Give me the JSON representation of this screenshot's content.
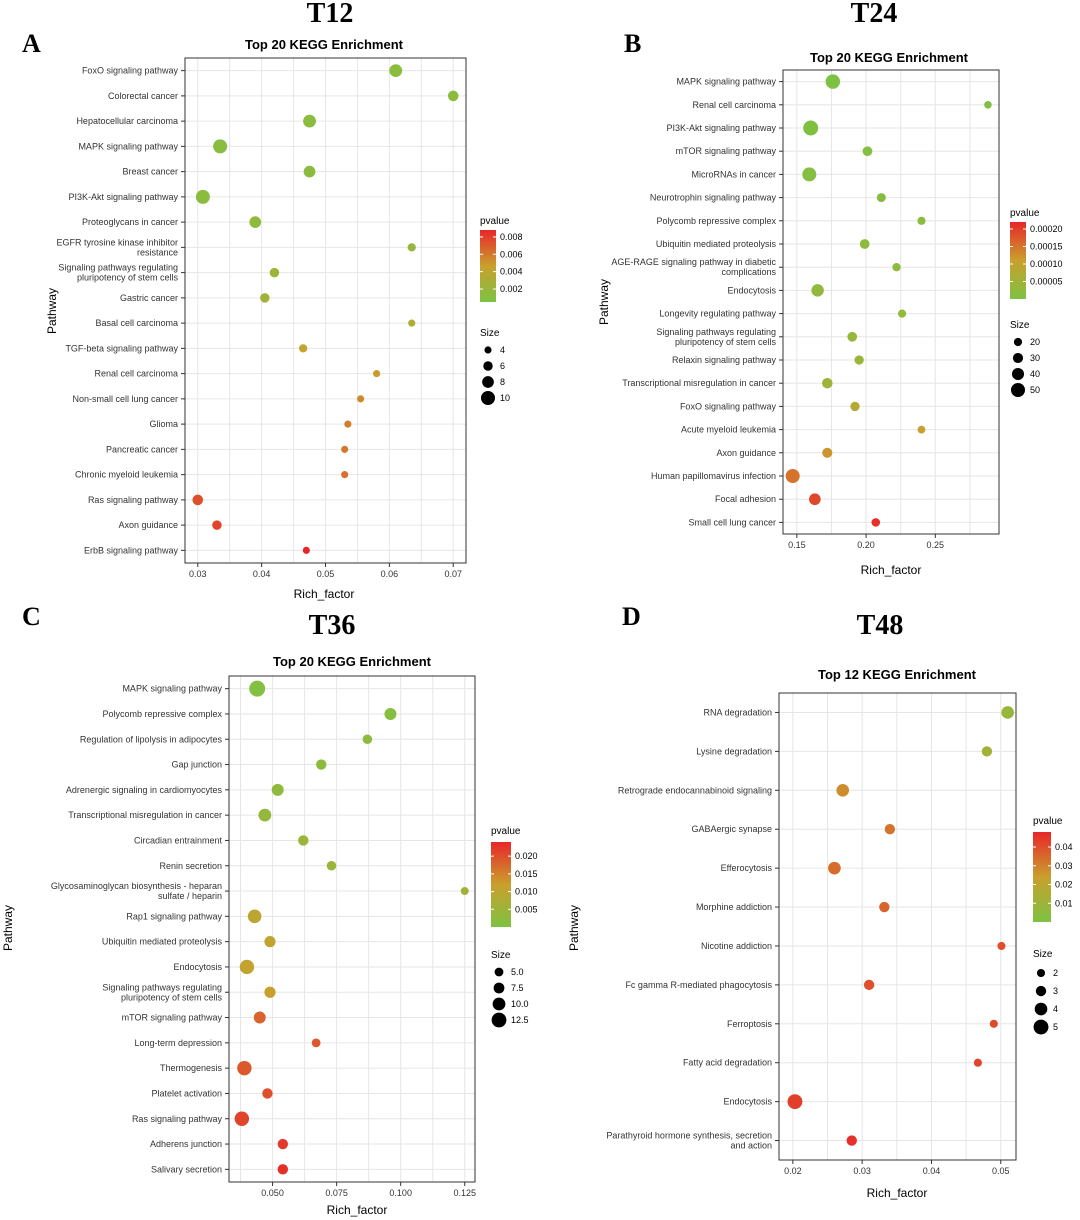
{
  "figure": {
    "panels": [
      {
        "letter": "A",
        "group": "T12"
      },
      {
        "letter": "B",
        "group": "T24"
      },
      {
        "letter": "C",
        "group": "T36"
      },
      {
        "letter": "D",
        "group": "T48"
      }
    ],
    "colorbar": {
      "low": "#7dc242",
      "mid": "#c9a02d",
      "high": "#e8262a"
    }
  },
  "chart_data": [
    {
      "type": "scatter",
      "title": "Top 20 KEGG Enrichment",
      "xlabel": "Rich_factor",
      "ylabel": "Pathway",
      "xlim": [
        0.028,
        0.072
      ],
      "xticks": [
        0.03,
        0.04,
        0.05,
        0.06,
        0.07
      ],
      "xtick_labels": [
        "0.03",
        "0.04",
        "0.05",
        "0.06",
        "0.07"
      ],
      "pvalue_range": [
        0.0005,
        0.0088
      ],
      "pvalue_ticks": [
        0.002,
        0.004,
        0.006,
        0.008
      ],
      "pvalue_tick_labels": [
        "0.002",
        "0.004",
        "0.006",
        "0.008"
      ],
      "size_range": [
        3,
        10
      ],
      "size_ticks": [
        4,
        6,
        8,
        10
      ],
      "size_tick_labels": [
        "4",
        "6",
        "8",
        "10"
      ],
      "legend_pvalue_title": "pvalue",
      "legend_size_title": "Size",
      "points": [
        {
          "pathway": [
            "FoxO signaling pathway"
          ],
          "rich_factor": 0.061,
          "pvalue": 0.0012,
          "size": 9
        },
        {
          "pathway": [
            "Colorectal cancer"
          ],
          "rich_factor": 0.07,
          "pvalue": 0.0014,
          "size": 7
        },
        {
          "pathway": [
            "Hepatocellular carcinoma"
          ],
          "rich_factor": 0.0475,
          "pvalue": 0.0012,
          "size": 9
        },
        {
          "pathway": [
            "MAPK signaling pathway"
          ],
          "rich_factor": 0.0335,
          "pvalue": 0.0011,
          "size": 10
        },
        {
          "pathway": [
            "Breast cancer"
          ],
          "rich_factor": 0.0475,
          "pvalue": 0.0013,
          "size": 8
        },
        {
          "pathway": [
            "PI3K-Akt signaling pathway"
          ],
          "rich_factor": 0.0308,
          "pvalue": 0.0012,
          "size": 10
        },
        {
          "pathway": [
            "Proteoglycans in cancer"
          ],
          "rich_factor": 0.039,
          "pvalue": 0.0015,
          "size": 8
        },
        {
          "pathway": [
            "EGFR tyrosine kinase inhibitor",
            "resistance"
          ],
          "rich_factor": 0.0635,
          "pvalue": 0.0018,
          "size": 5
        },
        {
          "pathway": [
            "Signaling pathways regulating",
            "pluripotency of stem cells"
          ],
          "rich_factor": 0.042,
          "pvalue": 0.0022,
          "size": 6
        },
        {
          "pathway": [
            "Gastric cancer"
          ],
          "rich_factor": 0.0405,
          "pvalue": 0.0025,
          "size": 6
        },
        {
          "pathway": [
            "Basal cell carcinoma"
          ],
          "rich_factor": 0.0635,
          "pvalue": 0.0032,
          "size": 4
        },
        {
          "pathway": [
            "TGF-beta signaling pathway"
          ],
          "rich_factor": 0.0465,
          "pvalue": 0.0042,
          "size": 5
        },
        {
          "pathway": [
            "Renal cell carcinoma"
          ],
          "rich_factor": 0.058,
          "pvalue": 0.0049,
          "size": 4
        },
        {
          "pathway": [
            "Non-small cell lung cancer"
          ],
          "rich_factor": 0.0555,
          "pvalue": 0.0054,
          "size": 4
        },
        {
          "pathway": [
            "Glioma"
          ],
          "rich_factor": 0.0535,
          "pvalue": 0.0058,
          "size": 4
        },
        {
          "pathway": [
            "Pancreatic cancer"
          ],
          "rich_factor": 0.053,
          "pvalue": 0.006,
          "size": 4
        },
        {
          "pathway": [
            "Chronic myeloid leukemia"
          ],
          "rich_factor": 0.053,
          "pvalue": 0.0062,
          "size": 4
        },
        {
          "pathway": [
            "Ras signaling pathway"
          ],
          "rich_factor": 0.03,
          "pvalue": 0.0074,
          "size": 7
        },
        {
          "pathway": [
            "Axon guidance"
          ],
          "rich_factor": 0.033,
          "pvalue": 0.0078,
          "size": 6
        },
        {
          "pathway": [
            "ErbB signaling pathway"
          ],
          "rich_factor": 0.047,
          "pvalue": 0.0088,
          "size": 4
        }
      ]
    },
    {
      "type": "scatter",
      "title": "Top 20 KEGG Enrichment",
      "xlabel": "Rich_factor",
      "ylabel": "Pathway",
      "xlim": [
        0.14,
        0.296
      ],
      "xticks": [
        0.15,
        0.2,
        0.25
      ],
      "xtick_labels": [
        "0.15",
        "0.20",
        "0.25"
      ],
      "pvalue_range": [
        0.0,
        0.00022
      ],
      "pvalue_ticks": [
        5e-05,
        0.0001,
        0.00015,
        0.0002
      ],
      "pvalue_tick_labels": [
        "0.00005",
        "0.00010",
        "0.00015",
        "0.00020"
      ],
      "size_range": [
        14,
        55
      ],
      "size_ticks": [
        20,
        30,
        40,
        50
      ],
      "size_tick_labels": [
        "20",
        "30",
        "40",
        "50"
      ],
      "legend_pvalue_title": "pvalue",
      "legend_size_title": "Size",
      "points": [
        {
          "pathway": [
            "MAPK signaling pathway"
          ],
          "rich_factor": 0.176,
          "pvalue": 0.0,
          "size": 52
        },
        {
          "pathway": [
            "Renal cell carcinoma"
          ],
          "rich_factor": 0.288,
          "pvalue": 5e-06,
          "size": 17
        },
        {
          "pathway": [
            "PI3K-Akt signaling pathway"
          ],
          "rich_factor": 0.16,
          "pvalue": 5e-06,
          "size": 55
        },
        {
          "pathway": [
            "mTOR signaling pathway"
          ],
          "rich_factor": 0.201,
          "pvalue": 1e-05,
          "size": 28
        },
        {
          "pathway": [
            "MicroRNAs in cancer"
          ],
          "rich_factor": 0.159,
          "pvalue": 1.2e-05,
          "size": 50
        },
        {
          "pathway": [
            "Neurotrophin signaling pathway"
          ],
          "rich_factor": 0.211,
          "pvalue": 1.5e-05,
          "size": 24
        },
        {
          "pathway": [
            "Polycomb repressive complex"
          ],
          "rich_factor": 0.24,
          "pvalue": 1.8e-05,
          "size": 20
        },
        {
          "pathway": [
            "Ubiquitin mediated proteolysis"
          ],
          "rich_factor": 0.199,
          "pvalue": 2e-05,
          "size": 28
        },
        {
          "pathway": [
            "AGE-RAGE signaling pathway in diabetic",
            "complications"
          ],
          "rich_factor": 0.222,
          "pvalue": 2.5e-05,
          "size": 21
        },
        {
          "pathway": [
            "Endocytosis"
          ],
          "rich_factor": 0.165,
          "pvalue": 2.8e-05,
          "size": 42
        },
        {
          "pathway": [
            "Longevity regulating pathway"
          ],
          "rich_factor": 0.226,
          "pvalue": 3e-05,
          "size": 20
        },
        {
          "pathway": [
            "Signaling pathways regulating",
            "pluripotency of stem cells"
          ],
          "rich_factor": 0.19,
          "pvalue": 3.5e-05,
          "size": 28
        },
        {
          "pathway": [
            "Relaxin signaling pathway"
          ],
          "rich_factor": 0.195,
          "pvalue": 4e-05,
          "size": 26
        },
        {
          "pathway": [
            "Transcriptional misregulation in cancer"
          ],
          "rich_factor": 0.172,
          "pvalue": 5e-05,
          "size": 32
        },
        {
          "pathway": [
            "FoxO signaling pathway"
          ],
          "rich_factor": 0.192,
          "pvalue": 8e-05,
          "size": 26
        },
        {
          "pathway": [
            "Acute myeloid leukemia"
          ],
          "rich_factor": 0.24,
          "pvalue": 0.00011,
          "size": 18
        },
        {
          "pathway": [
            "Axon guidance"
          ],
          "rich_factor": 0.172,
          "pvalue": 0.00012,
          "size": 30
        },
        {
          "pathway": [
            "Human papillomavirus infection"
          ],
          "rich_factor": 0.147,
          "pvalue": 0.00015,
          "size": 50
        },
        {
          "pathway": [
            "Focal adhesion"
          ],
          "rich_factor": 0.163,
          "pvalue": 0.00019,
          "size": 38
        },
        {
          "pathway": [
            "Small cell lung cancer"
          ],
          "rich_factor": 0.207,
          "pvalue": 0.00021,
          "size": 22
        }
      ]
    },
    {
      "type": "scatter",
      "title": "Top 20 KEGG Enrichment",
      "xlabel": "Rich_factor",
      "ylabel": "Pathway",
      "xlim": [
        0.033,
        0.129
      ],
      "xticks": [
        0.05,
        0.075,
        0.1,
        0.125
      ],
      "xtick_labels": [
        "0.050",
        "0.075",
        "0.100",
        "0.125"
      ],
      "pvalue_range": [
        0.0,
        0.024
      ],
      "pvalue_ticks": [
        0.005,
        0.01,
        0.015,
        0.02
      ],
      "pvalue_tick_labels": [
        "0.005",
        "0.010",
        "0.015",
        "0.020"
      ],
      "size_range": [
        4,
        14
      ],
      "size_ticks": [
        5.0,
        7.5,
        10.0,
        12.5
      ],
      "size_tick_labels": [
        "5.0",
        "7.5",
        "10.0",
        "12.5"
      ],
      "legend_pvalue_title": "pvalue",
      "legend_size_title": "Size",
      "points": [
        {
          "pathway": [
            "MAPK signaling pathway"
          ],
          "rich_factor": 0.044,
          "pvalue": 0.001,
          "size": 14
        },
        {
          "pathway": [
            "Polycomb repressive complex"
          ],
          "rich_factor": 0.096,
          "pvalue": 0.0015,
          "size": 9
        },
        {
          "pathway": [
            "Regulation of lipolysis in adipocytes"
          ],
          "rich_factor": 0.087,
          "pvalue": 0.002,
          "size": 6
        },
        {
          "pathway": [
            "Gap junction"
          ],
          "rich_factor": 0.069,
          "pvalue": 0.0025,
          "size": 7
        },
        {
          "pathway": [
            "Adrenergic signaling in cardiomyocytes"
          ],
          "rich_factor": 0.052,
          "pvalue": 0.003,
          "size": 9
        },
        {
          "pathway": [
            "Transcriptional misregulation in cancer"
          ],
          "rich_factor": 0.047,
          "pvalue": 0.0035,
          "size": 10
        },
        {
          "pathway": [
            "Circadian entrainment"
          ],
          "rich_factor": 0.062,
          "pvalue": 0.0045,
          "size": 7
        },
        {
          "pathway": [
            "Renin secretion"
          ],
          "rich_factor": 0.073,
          "pvalue": 0.0045,
          "size": 6
        },
        {
          "pathway": [
            "Glycosaminoglycan biosynthesis - heparan",
            "sulfate / heparin"
          ],
          "rich_factor": 0.125,
          "pvalue": 0.006,
          "size": 4
        },
        {
          "pathway": [
            "Rap1 signaling pathway"
          ],
          "rich_factor": 0.043,
          "pvalue": 0.01,
          "size": 11
        },
        {
          "pathway": [
            "Ubiquitin mediated proteolysis"
          ],
          "rich_factor": 0.049,
          "pvalue": 0.0105,
          "size": 8
        },
        {
          "pathway": [
            "Endocytosis"
          ],
          "rich_factor": 0.04,
          "pvalue": 0.011,
          "size": 12
        },
        {
          "pathway": [
            "Signaling pathways regulating",
            "pluripotency of stem cells"
          ],
          "rich_factor": 0.049,
          "pvalue": 0.012,
          "size": 8
        },
        {
          "pathway": [
            "mTOR signaling pathway"
          ],
          "rich_factor": 0.045,
          "pvalue": 0.018,
          "size": 9
        },
        {
          "pathway": [
            "Long-term depression"
          ],
          "rich_factor": 0.067,
          "pvalue": 0.019,
          "size": 5
        },
        {
          "pathway": [
            "Thermogenesis"
          ],
          "rich_factor": 0.039,
          "pvalue": 0.019,
          "size": 12
        },
        {
          "pathway": [
            "Platelet activation"
          ],
          "rich_factor": 0.048,
          "pvalue": 0.02,
          "size": 7
        },
        {
          "pathway": [
            "Ras signaling pathway"
          ],
          "rich_factor": 0.038,
          "pvalue": 0.021,
          "size": 12
        },
        {
          "pathway": [
            "Adherens junction"
          ],
          "rich_factor": 0.054,
          "pvalue": 0.022,
          "size": 7
        },
        {
          "pathway": [
            "Salivary secretion"
          ],
          "rich_factor": 0.054,
          "pvalue": 0.023,
          "size": 7
        }
      ]
    },
    {
      "type": "scatter",
      "title": "Top 12 KEGG Enrichment",
      "xlabel": "Rich_factor",
      "ylabel": "Pathway",
      "xlim": [
        0.018,
        0.0522
      ],
      "xticks": [
        0.02,
        0.03,
        0.04,
        0.05
      ],
      "xtick_labels": [
        "0.02",
        "0.03",
        "0.04",
        "0.05"
      ],
      "pvalue_range": [
        0.0,
        0.048
      ],
      "pvalue_ticks": [
        0.01,
        0.02,
        0.03,
        0.04
      ],
      "pvalue_tick_labels": [
        "0.01",
        "0.02",
        "0.03",
        "0.04"
      ],
      "size_range": [
        1.5,
        5.5
      ],
      "size_ticks": [
        2,
        3,
        4,
        5
      ],
      "size_tick_labels": [
        "2",
        "3",
        "4",
        "5"
      ],
      "legend_pvalue_title": "pvalue",
      "legend_size_title": "Size",
      "points": [
        {
          "pathway": [
            "RNA degradation"
          ],
          "rich_factor": 0.051,
          "pvalue": 0.008,
          "size": 4
        },
        {
          "pathway": [
            "Lysine degradation"
          ],
          "rich_factor": 0.048,
          "pvalue": 0.012,
          "size": 3
        },
        {
          "pathway": [
            "Retrograde endocannabinoid signaling"
          ],
          "rich_factor": 0.0272,
          "pvalue": 0.028,
          "size": 4
        },
        {
          "pathway": [
            "GABAergic synapse"
          ],
          "rich_factor": 0.034,
          "pvalue": 0.033,
          "size": 3
        },
        {
          "pathway": [
            "Efferocytosis"
          ],
          "rich_factor": 0.026,
          "pvalue": 0.034,
          "size": 4
        },
        {
          "pathway": [
            "Morphine addiction"
          ],
          "rich_factor": 0.0332,
          "pvalue": 0.036,
          "size": 3
        },
        {
          "pathway": [
            "Nicotine addiction"
          ],
          "rich_factor": 0.0501,
          "pvalue": 0.04,
          "size": 2
        },
        {
          "pathway": [
            "Fc gamma R-mediated phagocytosis"
          ],
          "rich_factor": 0.031,
          "pvalue": 0.04,
          "size": 3
        },
        {
          "pathway": [
            "Ferroptosis"
          ],
          "rich_factor": 0.049,
          "pvalue": 0.041,
          "size": 2
        },
        {
          "pathway": [
            "Fatty acid degradation"
          ],
          "rich_factor": 0.0467,
          "pvalue": 0.042,
          "size": 2
        },
        {
          "pathway": [
            "Endocytosis"
          ],
          "rich_factor": 0.0203,
          "pvalue": 0.043,
          "size": 5
        },
        {
          "pathway": [
            "Parathyroid hormone synthesis, secretion",
            "and action"
          ],
          "rich_factor": 0.0285,
          "pvalue": 0.046,
          "size": 3
        }
      ]
    }
  ]
}
